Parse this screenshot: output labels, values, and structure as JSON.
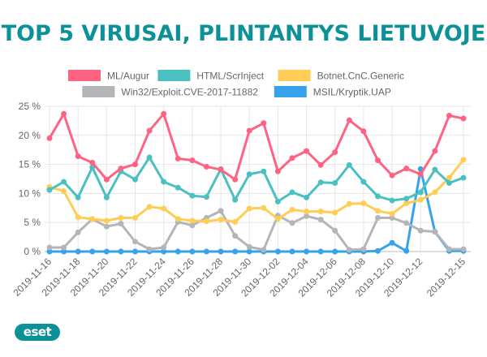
{
  "title": "TOP 5 VIRUSAI, PLINTANTYS LIETUVOJE",
  "logo_text": "eset",
  "chart_data": {
    "type": "line",
    "title": "TOP 5 VIRUSAI, PLINTANTYS LIETUVOJE",
    "xlabel": "",
    "ylabel": "",
    "ylim": [
      0,
      25
    ],
    "yticks": [
      0,
      5,
      10,
      15,
      20,
      25
    ],
    "ytick_labels": [
      "0 %",
      "5 %",
      "10 %",
      "15 %",
      "20 %",
      "25 %"
    ],
    "grid": true,
    "legend_position": "top",
    "x": [
      "2019-11-16",
      "2019-11-17",
      "2019-11-18",
      "2019-11-19",
      "2019-11-20",
      "2019-11-21",
      "2019-11-22",
      "2019-11-23",
      "2019-11-24",
      "2019-11-25",
      "2019-11-26",
      "2019-11-27",
      "2019-11-28",
      "2019-11-29",
      "2019-11-30",
      "2019-12-01",
      "2019-12-02",
      "2019-12-03",
      "2019-12-04",
      "2019-12-05",
      "2019-12-06",
      "2019-12-07",
      "2019-12-08",
      "2019-12-09",
      "2019-12-10",
      "2019-12-11",
      "2019-12-12",
      "2019-12-13",
      "2019-12-14",
      "2019-12-15"
    ],
    "xtick_labels": [
      "2019-11-16",
      "2019-11-18",
      "2019-11-20",
      "2019-11-22",
      "2019-11-24",
      "2019-11-26",
      "2019-11-28",
      "2019-11-30",
      "2019-12-02",
      "2019-12-04",
      "2019-12-06",
      "2019-12-08",
      "2019-12-10",
      "2019-12-12",
      "2019-12-15"
    ],
    "series": [
      {
        "name": "ML/Augur",
        "color": "#ff6384",
        "values": [
          19.5,
          23.7,
          16.4,
          15.3,
          12.4,
          14.3,
          15.0,
          20.8,
          23.7,
          16.0,
          15.7,
          14.6,
          14.1,
          12.4,
          20.8,
          22.1,
          13.8,
          16.1,
          17.3,
          14.9,
          17.1,
          22.6,
          20.7,
          15.7,
          13.1,
          14.3,
          13.3,
          17.3,
          23.4,
          22.9
        ]
      },
      {
        "name": "HTML/ScrInject",
        "color": "#4bc0c0",
        "values": [
          10.6,
          12.0,
          9.3,
          14.5,
          9.3,
          13.8,
          12.4,
          16.2,
          12.0,
          11.0,
          9.6,
          9.4,
          14.2,
          8.9,
          13.3,
          13.8,
          8.6,
          10.2,
          9.3,
          11.9,
          11.8,
          14.9,
          12.0,
          9.5,
          8.8,
          9.1,
          10.2,
          14.1,
          11.8,
          12.7
        ]
      },
      {
        "name": "Botnet.CnC.Generic",
        "color": "#ffcd56",
        "values": [
          11.1,
          10.4,
          5.9,
          5.6,
          5.3,
          5.8,
          5.8,
          7.7,
          7.4,
          5.6,
          5.3,
          5.2,
          5.5,
          5.1,
          7.4,
          7.5,
          5.6,
          7.2,
          6.9,
          6.9,
          6.7,
          8.2,
          8.3,
          7.0,
          6.5,
          8.3,
          8.9,
          10.2,
          12.7,
          15.8
        ]
      },
      {
        "name": "Win32/Exploit.CVE-2017-11882",
        "color": "#b4b5b8",
        "values": [
          0.7,
          0.7,
          3.3,
          5.6,
          4.3,
          4.8,
          1.7,
          0.4,
          0.7,
          5.1,
          4.5,
          5.8,
          7.0,
          2.7,
          0.8,
          0.3,
          6.2,
          4.9,
          6.1,
          5.5,
          3.6,
          0.3,
          0.4,
          5.8,
          5.8,
          4.9,
          3.6,
          3.4,
          0.4,
          0.4
        ]
      },
      {
        "name": "MSIL/Kryptik.UAP",
        "color": "#36a2eb",
        "values": [
          0,
          0,
          0,
          0,
          0,
          0,
          0,
          0,
          0,
          0,
          0,
          0,
          0,
          0,
          0,
          0,
          0,
          0,
          0,
          0,
          0,
          0,
          0,
          0.1,
          1.5,
          0.1,
          14.2,
          3.4,
          0.1,
          0.1
        ]
      }
    ]
  }
}
